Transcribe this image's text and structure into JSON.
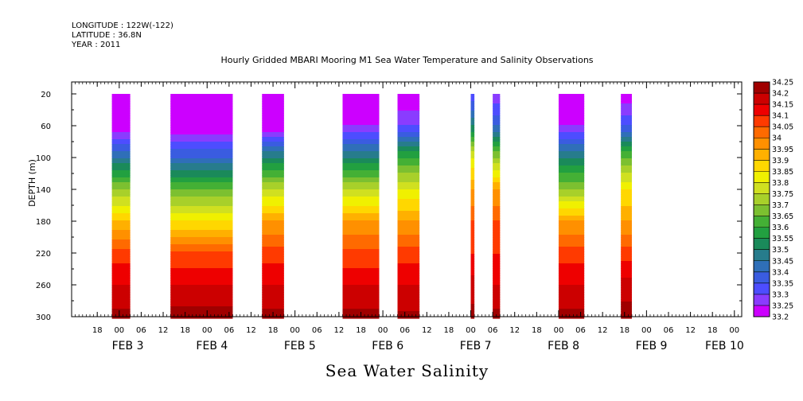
{
  "header": {
    "longitude": "LONGITUDE : 122W(-122)",
    "latitude": "LATITUDE : 36.8N",
    "year": "YEAR : 2011"
  },
  "chart_data": {
    "type": "heatmap",
    "title": "Hourly Gridded MBARI Mooring M1 Sea Water Temperature and Salinity Observations",
    "bottom_label": "Sea Water Salinity",
    "ylabel": "DEPTH (m)",
    "ylim": [
      5,
      300
    ],
    "y_ticks": [
      20,
      60,
      100,
      140,
      180,
      220,
      260,
      300
    ],
    "y_reversed": true,
    "x_range_hours": [
      -13,
      170
    ],
    "x_hour_ticks": [
      {
        "h": -6,
        "label": "18"
      },
      {
        "h": 0,
        "label": "00"
      },
      {
        "h": 6,
        "label": "06"
      },
      {
        "h": 12,
        "label": "12"
      },
      {
        "h": 18,
        "label": "18"
      },
      {
        "h": 24,
        "label": "00"
      },
      {
        "h": 30,
        "label": "06"
      },
      {
        "h": 36,
        "label": "12"
      },
      {
        "h": 42,
        "label": "18"
      },
      {
        "h": 48,
        "label": "00"
      },
      {
        "h": 54,
        "label": "06"
      },
      {
        "h": 60,
        "label": "12"
      },
      {
        "h": 66,
        "label": "18"
      },
      {
        "h": 72,
        "label": "00"
      },
      {
        "h": 78,
        "label": "06"
      },
      {
        "h": 84,
        "label": "12"
      },
      {
        "h": 90,
        "label": "18"
      },
      {
        "h": 96,
        "label": "00"
      },
      {
        "h": 102,
        "label": "06"
      },
      {
        "h": 108,
        "label": "12"
      },
      {
        "h": 114,
        "label": "18"
      },
      {
        "h": 120,
        "label": "00"
      },
      {
        "h": 126,
        "label": "06"
      },
      {
        "h": 132,
        "label": "12"
      },
      {
        "h": 138,
        "label": "18"
      },
      {
        "h": 144,
        "label": "00"
      },
      {
        "h": 150,
        "label": "06"
      },
      {
        "h": 156,
        "label": "12"
      },
      {
        "h": 162,
        "label": "18"
      },
      {
        "h": 168,
        "label": "00"
      }
    ],
    "day_labels": [
      {
        "label": "FEB 3",
        "h": -2
      },
      {
        "label": "FEB 4",
        "h": 21
      },
      {
        "label": "FEB 5",
        "h": 45
      },
      {
        "label": "FEB 6",
        "h": 69
      },
      {
        "label": "FEB 7",
        "h": 93
      },
      {
        "label": "FEB 8",
        "h": 117
      },
      {
        "label": "FEB 9",
        "h": 141
      },
      {
        "label": "FEB 10",
        "h": 160
      }
    ],
    "colorbar": {
      "levels": [
        "33.2",
        "33.25",
        "33.3",
        "33.35",
        "33.4",
        "33.45",
        "33.5",
        "33.55",
        "33.6",
        "33.65",
        "33.7",
        "33.75",
        "33.8",
        "33.85",
        "33.9",
        "33.95",
        "34",
        "34.05",
        "34.1",
        "34.15",
        "34.2",
        "34.25"
      ],
      "colors": [
        "#cc00ff",
        "#8a3cff",
        "#4d4dff",
        "#3a5ce0",
        "#2f6fb8",
        "#277c8c",
        "#1a8a5a",
        "#22a040",
        "#44b035",
        "#7cc030",
        "#a8d02a",
        "#d0e020",
        "#f0f000",
        "#ffd700",
        "#ffb000",
        "#ff9000",
        "#ff6a00",
        "#ff3a00",
        "#ee0000",
        "#cc0000",
        "#a00000"
      ]
    },
    "segments": [
      {
        "h0": -2,
        "h1": 3,
        "c": [
          0,
          0,
          5,
          10,
          14,
          17.5,
          19,
          20.3
        ]
      },
      {
        "h0": 14,
        "h1": 31,
        "c": [
          0,
          0,
          4,
          9,
          13,
          17.2,
          19,
          20.5
        ]
      },
      {
        "h0": 39,
        "h1": 45,
        "c": [
          0,
          0,
          6,
          11,
          15,
          17.5,
          19,
          20.3
        ]
      },
      {
        "h0": 61,
        "h1": 71,
        "c": [
          0,
          1,
          6,
          11,
          15,
          17.2,
          19,
          20.4
        ]
      },
      {
        "h0": 76,
        "h1": 82,
        "c": [
          0,
          2,
          8,
          12,
          15,
          17.5,
          19,
          20.2
        ]
      },
      {
        "h0": 96,
        "h1": 97,
        "c": [
          2,
          6,
          12,
          15,
          17,
          18,
          19.5,
          20.3
        ]
      },
      {
        "h0": 102,
        "h1": 104,
        "c": [
          1,
          4,
          10,
          15,
          17,
          18,
          19,
          20.3
        ]
      },
      {
        "h0": 120,
        "h1": 127,
        "c": [
          0,
          1,
          6,
          10,
          15,
          17.5,
          19,
          20.3
        ]
      },
      {
        "h0": 137,
        "h1": 140,
        "c": [
          0,
          3,
          9,
          13,
          15,
          17.5,
          19.5,
          20.5
        ]
      }
    ]
  }
}
